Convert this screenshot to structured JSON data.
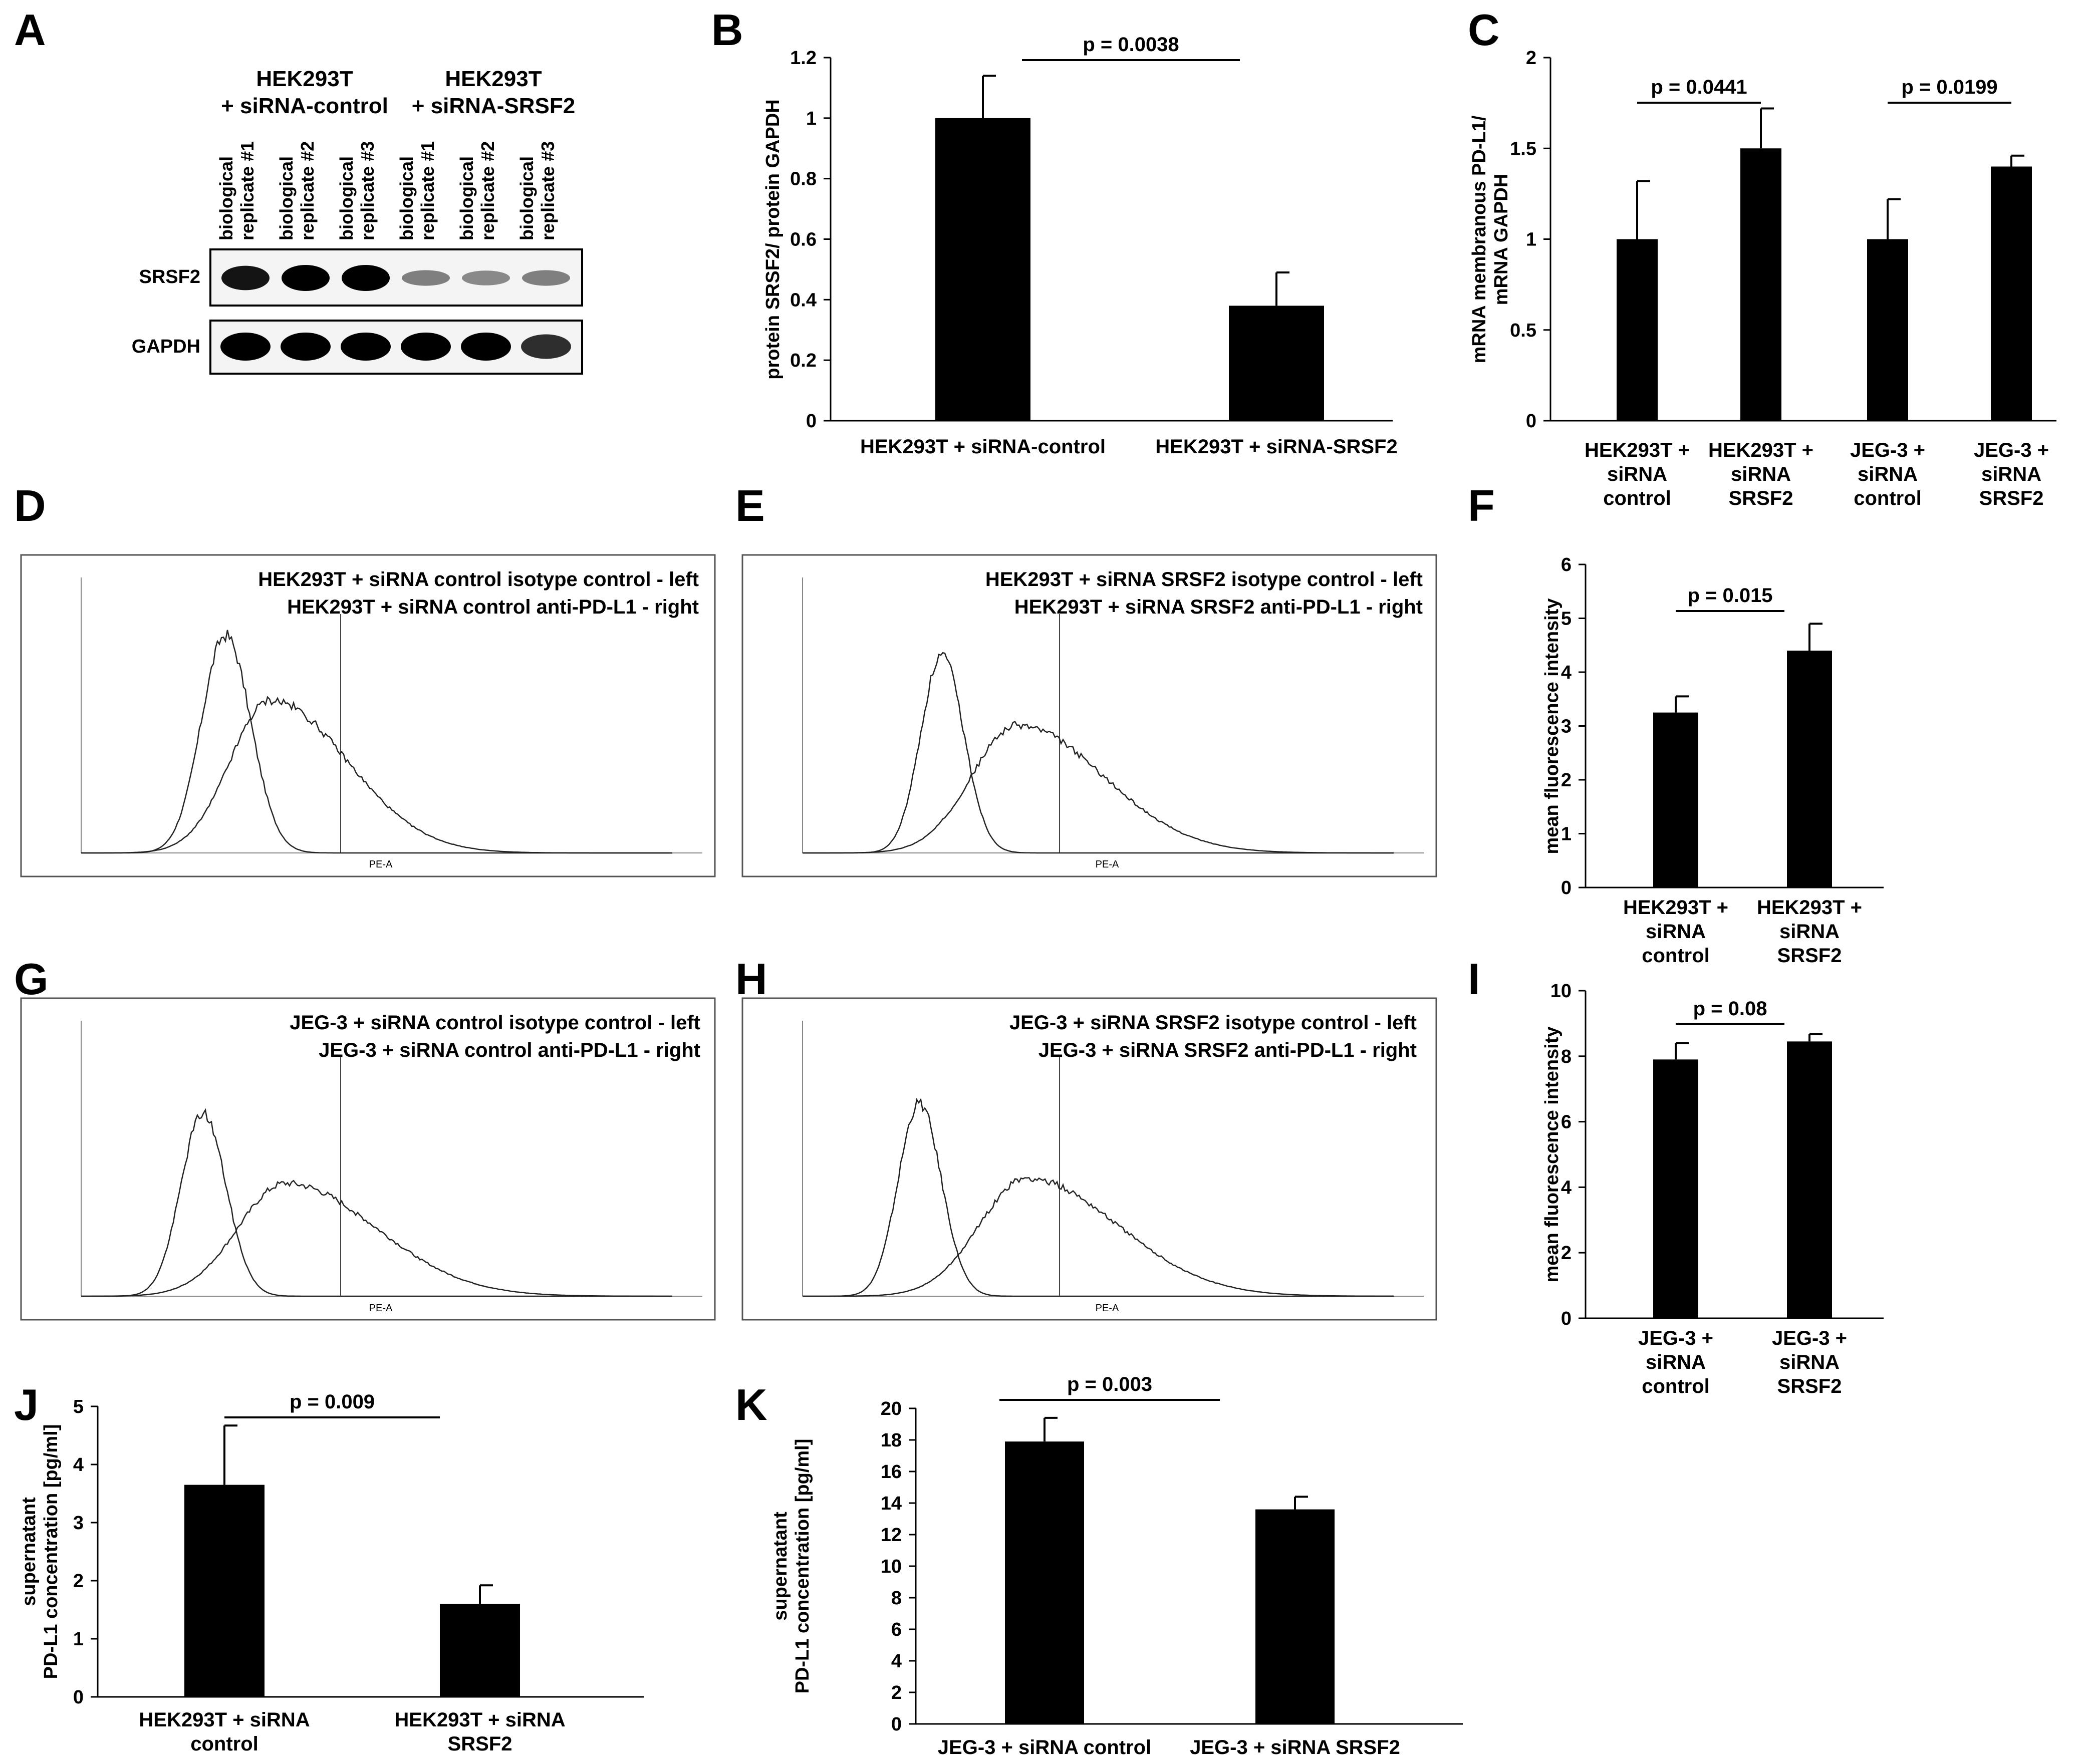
{
  "panels": {
    "A": "A",
    "B": "B",
    "C": "C",
    "D": "D",
    "E": "E",
    "F": "F",
    "G": "G",
    "H": "H",
    "I": "I",
    "J": "J",
    "K": "K"
  },
  "blot": {
    "group_labels": [
      "HEK293T",
      "+ siRNA-control",
      "HEK293T",
      "+ siRNA-SRSF2"
    ],
    "lanes": [
      {
        "line1": "biological",
        "line2": "replicate #1"
      },
      {
        "line1": "biological",
        "line2": "replicate #2"
      },
      {
        "line1": "biological",
        "line2": "replicate #3"
      },
      {
        "line1": "biological",
        "line2": "replicate #1"
      },
      {
        "line1": "biological",
        "line2": "replicate #2"
      },
      {
        "line1": "biological",
        "line2": "replicate #3"
      }
    ],
    "rows": [
      "SRSF2",
      "GAPDH"
    ],
    "srsf2_band_intensity": [
      0.9,
      1.0,
      1.0,
      0.35,
      0.3,
      0.35
    ],
    "gapdh_band_intensity": [
      1.0,
      1.0,
      1.0,
      1.0,
      1.0,
      0.75
    ]
  },
  "flow": {
    "axis_label": "PE-A",
    "D": {
      "line1": "HEK293T + siRNA control isotype control - left",
      "line2": "HEK293T + siRNA control anti-PD-L1 - right"
    },
    "E": {
      "line1": "HEK293T + siRNA SRSF2 isotype control - left",
      "line2": "HEK293T + siRNA SRSF2 anti-PD-L1 - right"
    },
    "G": {
      "line1": "JEG-3 + siRNA control isotype control - left",
      "line2": "JEG-3 + siRNA control anti-PD-L1 - right"
    },
    "H": {
      "line1": "JEG-3 + siRNA SRSF2 isotype control - left",
      "line2": "JEG-3 + siRNA SRSF2 anti-PD-L1 - right"
    }
  },
  "chart_data": [
    {
      "id": "B",
      "type": "bar",
      "categories": [
        "HEK293T  + siRNA-control",
        "HEK293T  + siRNA-SRSF2"
      ],
      "values": [
        1.0,
        0.38
      ],
      "errors": [
        0.14,
        0.11
      ],
      "ylim": [
        0,
        1.2
      ],
      "yticks": [
        "0",
        "0.2",
        "0.4",
        "0.6",
        "0.8",
        "1",
        "1.2"
      ],
      "ylabel": "protein SRSF2/ protein GAPDH",
      "annotations": [
        {
          "text": "p = 0.0038",
          "from": 0,
          "to": 1
        }
      ]
    },
    {
      "id": "C",
      "type": "bar",
      "categories": [
        "HEK293T + siRNA control",
        "HEK293T + siRNA SRSF2",
        "JEG-3 + siRNA control",
        "JEG-3 + siRNA SRSF2"
      ],
      "category_lines": [
        [
          "HEK293T +",
          "siRNA",
          "control"
        ],
        [
          "HEK293T +",
          "siRNA",
          "SRSF2"
        ],
        [
          "JEG-3 +",
          "siRNA",
          "control"
        ],
        [
          "JEG-3 +",
          "siRNA",
          "SRSF2"
        ]
      ],
      "values": [
        1.0,
        1.5,
        1.0,
        1.4
      ],
      "errors": [
        0.32,
        0.22,
        0.22,
        0.06
      ],
      "ylim": [
        0,
        2
      ],
      "yticks": [
        "0",
        "0.5",
        "1",
        "1.5",
        "2"
      ],
      "ylabel": [
        "mRNA membranous PD-L1/",
        "mRNA GAPDH"
      ],
      "annotations": [
        {
          "text": "p = 0.0441",
          "from": 0,
          "to": 1
        },
        {
          "text": "p = 0.0199",
          "from": 2,
          "to": 3
        }
      ]
    },
    {
      "id": "F",
      "type": "bar",
      "categories": [
        "HEK293T + siRNA control",
        "HEK293T + siRNA SRSF2"
      ],
      "category_lines": [
        [
          "HEK293T +",
          "siRNA",
          "control"
        ],
        [
          "HEK293T +",
          "siRNA",
          "SRSF2"
        ]
      ],
      "values": [
        3.25,
        4.4
      ],
      "errors": [
        0.3,
        0.5
      ],
      "ylim": [
        0,
        6
      ],
      "yticks": [
        "0",
        "1",
        "2",
        "3",
        "4",
        "5",
        "6"
      ],
      "ylabel": "mean fluorescence intensity",
      "annotations": [
        {
          "text": "p = 0.015",
          "from": 0,
          "to": 1
        }
      ]
    },
    {
      "id": "I",
      "type": "bar",
      "categories": [
        "JEG-3 + siRNA control",
        "JEG-3 + siRNA SRSF2"
      ],
      "category_lines": [
        [
          "JEG-3 +",
          "siRNA",
          "control"
        ],
        [
          "JEG-3 +",
          "siRNA",
          "SRSF2"
        ]
      ],
      "values": [
        7.9,
        8.45
      ],
      "errors": [
        0.5,
        0.22
      ],
      "ylim": [
        0,
        10
      ],
      "yticks": [
        "0",
        "2",
        "4",
        "6",
        "8",
        "10"
      ],
      "ylabel": "mean fluorescence intensity",
      "annotations": [
        {
          "text": "p = 0.08",
          "from": 0,
          "to": 1
        }
      ]
    },
    {
      "id": "J",
      "type": "bar",
      "categories": [
        "HEK293T + siRNA control",
        "HEK293T + siRNA SRSF2"
      ],
      "category_lines": [
        [
          "HEK293T + siRNA",
          "control"
        ],
        [
          "HEK293T + siRNA",
          "SRSF2"
        ]
      ],
      "values": [
        3.65,
        1.6
      ],
      "errors": [
        1.02,
        0.32
      ],
      "ylim": [
        0,
        5
      ],
      "yticks": [
        "0",
        "1",
        "2",
        "3",
        "4",
        "5"
      ],
      "ylabel": [
        "supernatant",
        "PD-L1 concentration [pg/ml]"
      ],
      "annotations": [
        {
          "text": "p = 0.009",
          "from": 0,
          "to": 1
        }
      ]
    },
    {
      "id": "K",
      "type": "bar",
      "categories": [
        "JEG-3 + siRNA control",
        "JEG-3 + siRNA SRSF2"
      ],
      "values": [
        17.9,
        13.6
      ],
      "errors": [
        1.5,
        0.8
      ],
      "ylim": [
        0,
        20
      ],
      "yticks": [
        "0",
        "2",
        "4",
        "6",
        "8",
        "10",
        "12",
        "14",
        "16",
        "18",
        "20"
      ],
      "ylabel": [
        "supernatant",
        "PD-L1 concentration [pg/ml]"
      ],
      "annotations": [
        {
          "text": "p = 0.003",
          "from": 0,
          "to": 1
        }
      ]
    }
  ]
}
